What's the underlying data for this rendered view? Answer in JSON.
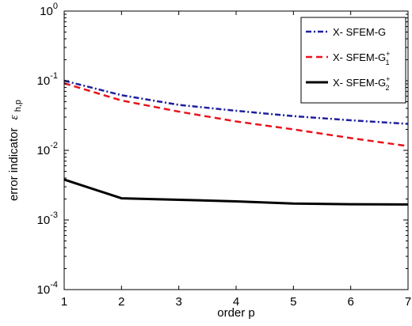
{
  "chart_data": {
    "type": "line",
    "xlabel": "order p",
    "ylabel": "error indicator",
    "ylabel_symbol": "ε",
    "ylabel_subscript": "h,p",
    "xlim": [
      1,
      7
    ],
    "ylim": [
      0.0001,
      1
    ],
    "yscale": "log",
    "x_ticks": [
      "1",
      "2",
      "3",
      "4",
      "5",
      "6",
      "7"
    ],
    "y_ticks": [
      {
        "base": "10",
        "exp": "0",
        "value": 1
      },
      {
        "base": "10",
        "exp": "-1",
        "value": 0.1
      },
      {
        "base": "10",
        "exp": "-2",
        "value": 0.01
      },
      {
        "base": "10",
        "exp": "-3",
        "value": 0.001
      },
      {
        "base": "10",
        "exp": "-4",
        "value": 0.0001
      }
    ],
    "grid": false,
    "legend_position": "top-right",
    "x": [
      1,
      2,
      3,
      4,
      5,
      6,
      7
    ],
    "series": [
      {
        "name": "X- SFEM-G",
        "name_sup": "",
        "name_sub": "",
        "color": "#1f1f9f",
        "style": "dashdot",
        "values": [
          0.1,
          0.062,
          0.045,
          0.037,
          0.031,
          0.027,
          0.024
        ]
      },
      {
        "name": "X- SFEM-G",
        "name_sup": "+",
        "name_sub": "1",
        "color": "#e8141c",
        "style": "dashed",
        "values": [
          0.092,
          0.052,
          0.036,
          0.026,
          0.02,
          0.015,
          0.0115
        ]
      },
      {
        "name": "X- SFEM-G",
        "name_sup": "+",
        "name_sub": "2",
        "color": "#000000",
        "style": "solid",
        "values": [
          0.0038,
          0.00205,
          0.00195,
          0.00185,
          0.00172,
          0.00168,
          0.00167
        ]
      }
    ]
  }
}
